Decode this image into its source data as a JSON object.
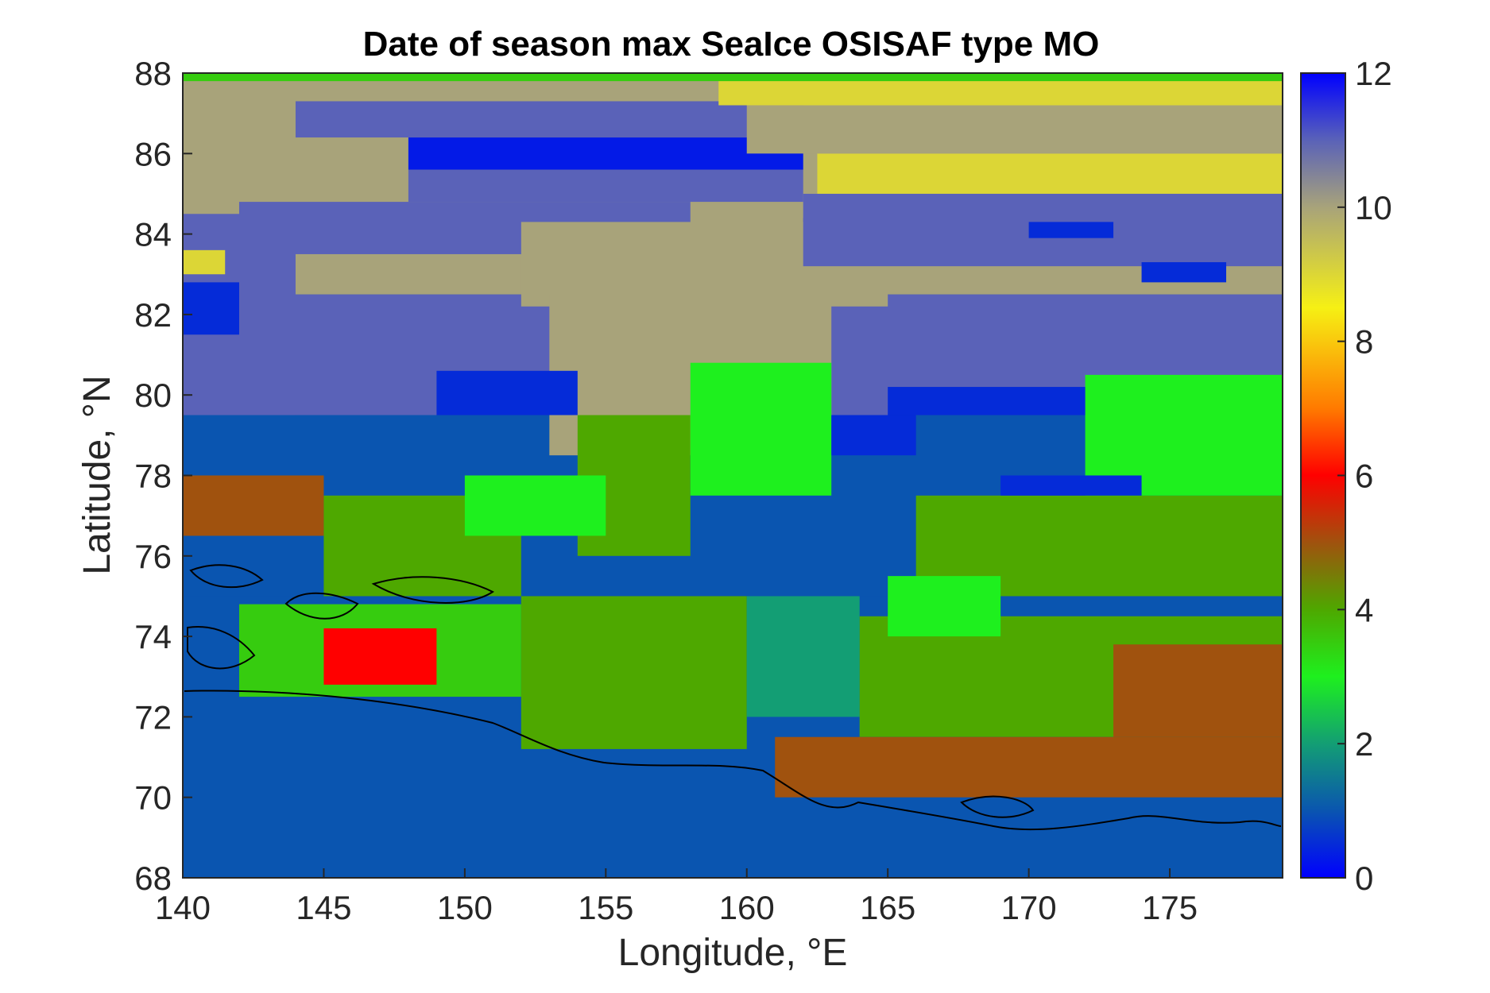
{
  "chart_data": {
    "type": "heatmap",
    "title": "Date of season max SeaIce OSISAF type MO",
    "xlabel": "Longitude, °E",
    "ylabel": "Latitude, °N",
    "xlim": [
      140,
      179
    ],
    "ylim": [
      68,
      88
    ],
    "x_ticks": [
      "140",
      "145",
      "150",
      "155",
      "160",
      "165",
      "170",
      "175"
    ],
    "y_ticks": [
      "68",
      "70",
      "72",
      "74",
      "76",
      "78",
      "80",
      "82",
      "84",
      "86",
      "88"
    ],
    "colorbar": {
      "range": [
        0,
        12
      ],
      "ticks": [
        "0",
        "2",
        "4",
        "6",
        "8",
        "10",
        "12"
      ],
      "colormap": [
        {
          "value": 0,
          "color": "#0000ff"
        },
        {
          "value": 1,
          "color": "#0a55b0"
        },
        {
          "value": 2,
          "color": "#139e74"
        },
        {
          "value": 3,
          "color": "#1ef01e"
        },
        {
          "value": 4,
          "color": "#4ea800"
        },
        {
          "value": 5,
          "color": "#a0520e"
        },
        {
          "value": 6,
          "color": "#ff0000"
        },
        {
          "value": 7,
          "color": "#ff7a00"
        },
        {
          "value": 8.5,
          "color": "#f6f014"
        },
        {
          "value": 10,
          "color": "#a8a37a"
        },
        {
          "value": 11,
          "color": "#5a62b8"
        },
        {
          "value": 12,
          "color": "#0000ff"
        }
      ]
    },
    "regions": [
      {
        "lon": [
          140,
          179
        ],
        "lat": [
          68,
          75
        ],
        "value": 1
      },
      {
        "lon": [
          140,
          179
        ],
        "lat": [
          75,
          79.5
        ],
        "value": 1
      },
      {
        "lon": [
          140,
          179
        ],
        "lat": [
          79.5,
          82.5
        ],
        "value": 11
      },
      {
        "lon": [
          140,
          179
        ],
        "lat": [
          82.5,
          88
        ],
        "value": 10
      },
      {
        "lon": [
          140,
          144
        ],
        "lat": [
          79.5,
          84.5
        ],
        "value": 11
      },
      {
        "lon": [
          140,
          142
        ],
        "lat": [
          81.5,
          82.8
        ],
        "value": 0.5
      },
      {
        "lon": [
          140,
          141.5
        ],
        "lat": [
          83,
          83.6
        ],
        "value": 9
      },
      {
        "lon": [
          142,
          158
        ],
        "lat": [
          83.5,
          84.8
        ],
        "value": 11
      },
      {
        "lon": [
          148,
          162
        ],
        "lat": [
          84.8,
          85.6
        ],
        "value": 11
      },
      {
        "lon": [
          148,
          162
        ],
        "lat": [
          85.6,
          86.4
        ],
        "value": 0.3
      },
      {
        "lon": [
          144,
          162
        ],
        "lat": [
          86.4,
          87.3
        ],
        "value": 11
      },
      {
        "lon": [
          162.5,
          179
        ],
        "lat": [
          85.0,
          86.0
        ],
        "value": 9
      },
      {
        "lon": [
          162,
          179
        ],
        "lat": [
          84.3,
          85.0
        ],
        "value": 11
      },
      {
        "lon": [
          160,
          179
        ],
        "lat": [
          86.0,
          87.2
        ],
        "value": 10
      },
      {
        "lon": [
          159,
          179
        ],
        "lat": [
          87.2,
          87.9
        ],
        "value": 9
      },
      {
        "lon": [
          140,
          179
        ],
        "lat": [
          87.8,
          88
        ],
        "value": 3.5
      },
      {
        "lon": [
          152,
          165
        ],
        "lat": [
          82.2,
          84.3
        ],
        "value": 10
      },
      {
        "lon": [
          153,
          163
        ],
        "lat": [
          78.5,
          82.5
        ],
        "value": 10
      },
      {
        "lon": [
          162,
          179
        ],
        "lat": [
          83.2,
          84.4
        ],
        "value": 11
      },
      {
        "lon": [
          170,
          173
        ],
        "lat": [
          83.9,
          84.3
        ],
        "value": 0.5
      },
      {
        "lon": [
          174,
          177
        ],
        "lat": [
          82.8,
          83.3
        ],
        "value": 0.5
      },
      {
        "lon": [
          149,
          154
        ],
        "lat": [
          79.5,
          80.6
        ],
        "value": 0.5
      },
      {
        "lon": [
          154,
          158
        ],
        "lat": [
          76,
          79.5
        ],
        "value": 4
      },
      {
        "lon": [
          158,
          163
        ],
        "lat": [
          77.5,
          80.8
        ],
        "value": 3
      },
      {
        "lon": [
          163,
          166
        ],
        "lat": [
          78.5,
          79.5
        ],
        "value": 0.5
      },
      {
        "lon": [
          166,
          179
        ],
        "lat": [
          75,
          77.5
        ],
        "value": 4
      },
      {
        "lon": [
          172,
          179
        ],
        "lat": [
          77.5,
          80.5
        ],
        "value": 3
      },
      {
        "lon": [
          165,
          172
        ],
        "lat": [
          79.5,
          80.2
        ],
        "value": 0.5
      },
      {
        "lon": [
          169,
          174
        ],
        "lat": [
          77.5,
          78
        ],
        "value": 0.5
      },
      {
        "lon": [
          140,
          145
        ],
        "lat": [
          76.5,
          78
        ],
        "value": 5
      },
      {
        "lon": [
          145,
          152
        ],
        "lat": [
          75,
          77.5
        ],
        "value": 4
      },
      {
        "lon": [
          142,
          152
        ],
        "lat": [
          72.5,
          74.8
        ],
        "value": 3.5
      },
      {
        "lon": [
          145,
          149
        ],
        "lat": [
          72.8,
          74.2
        ],
        "value": 6
      },
      {
        "lon": [
          152,
          160
        ],
        "lat": [
          71.2,
          75
        ],
        "value": 4
      },
      {
        "lon": [
          160,
          164
        ],
        "lat": [
          72,
          75
        ],
        "value": 2
      },
      {
        "lon": [
          164,
          179
        ],
        "lat": [
          71.5,
          74.5
        ],
        "value": 4
      },
      {
        "lon": [
          173,
          179
        ],
        "lat": [
          71.5,
          73.8
        ],
        "value": 5
      },
      {
        "lon": [
          161,
          179
        ],
        "lat": [
          70,
          71.5
        ],
        "value": 5
      },
      {
        "lon": [
          165,
          169
        ],
        "lat": [
          74,
          75.5
        ],
        "value": 3
      },
      {
        "lon": [
          150,
          155
        ],
        "lat": [
          76.5,
          78
        ],
        "value": 3
      }
    ]
  }
}
